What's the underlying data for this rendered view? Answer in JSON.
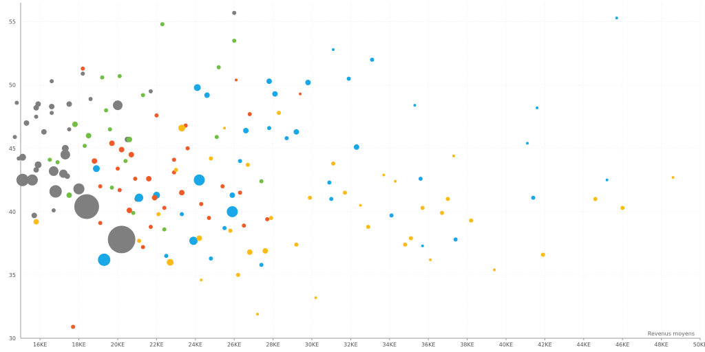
{
  "chart_data": {
    "type": "scatter",
    "title": "",
    "xlabel": "Revenus moyens",
    "ylabel": "",
    "xlim": [
      15000,
      50000
    ],
    "ylim": [
      30,
      56.5
    ],
    "x_ticks": [
      16000,
      18000,
      20000,
      22000,
      24000,
      26000,
      28000,
      30000,
      32000,
      34000,
      36000,
      38000,
      40000,
      42000,
      44000,
      46000,
      48000,
      50000
    ],
    "x_tick_labels": [
      "16KE",
      "18KE",
      "20KE",
      "22KE",
      "24KE",
      "26KE",
      "28KE",
      "30KE",
      "32KE",
      "34KE",
      "36KE",
      "38KE",
      "40KE",
      "42KE",
      "44KE",
      "46KE",
      "48KE",
      "50KE"
    ],
    "y_ticks": [
      30,
      35,
      40,
      45,
      50,
      55
    ],
    "y_tick_labels": [
      "30",
      "35",
      "40",
      "45",
      "50",
      "55"
    ],
    "grid": true,
    "legend": "none",
    "colors": {
      "gray": "#7f7f7f",
      "blue": "#1aa7e8",
      "green": "#70bf44",
      "orange": "#f05a28",
      "yellow": "#fdbb1a"
    },
    "series": [
      {
        "color": "gray",
        "points": [
          {
            "x": 18400,
            "y": 40.4,
            "r": 18
          },
          {
            "x": 20200,
            "y": 37.8,
            "r": 20
          },
          {
            "x": 15100,
            "y": 42.5,
            "r": 9
          },
          {
            "x": 15600,
            "y": 42.5,
            "r": 8
          },
          {
            "x": 16800,
            "y": 41.6,
            "r": 9
          },
          {
            "x": 18000,
            "y": 41.8,
            "r": 8
          },
          {
            "x": 16700,
            "y": 43.2,
            "r": 7
          },
          {
            "x": 17200,
            "y": 43.0,
            "r": 6
          },
          {
            "x": 17300,
            "y": 44.5,
            "r": 7
          },
          {
            "x": 17300,
            "y": 45.0,
            "r": 5
          },
          {
            "x": 20000,
            "y": 48.4,
            "r": 7
          },
          {
            "x": 15100,
            "y": 44.3,
            "r": 5
          },
          {
            "x": 15900,
            "y": 43.7,
            "r": 5
          },
          {
            "x": 15800,
            "y": 43.3,
            "r": 4
          },
          {
            "x": 15800,
            "y": 48.2,
            "r": 4
          },
          {
            "x": 15900,
            "y": 48.5,
            "r": 4
          },
          {
            "x": 16600,
            "y": 48.3,
            "r": 4
          },
          {
            "x": 17500,
            "y": 48.5,
            "r": 4
          },
          {
            "x": 15300,
            "y": 47.0,
            "r": 4
          },
          {
            "x": 15800,
            "y": 47.5,
            "r": 3
          },
          {
            "x": 14800,
            "y": 48.6,
            "r": 3
          },
          {
            "x": 14700,
            "y": 45.9,
            "r": 3
          },
          {
            "x": 16200,
            "y": 46.3,
            "r": 4
          },
          {
            "x": 16600,
            "y": 47.8,
            "r": 3
          },
          {
            "x": 17500,
            "y": 46.5,
            "r": 3
          },
          {
            "x": 16600,
            "y": 50.3,
            "r": 3
          },
          {
            "x": 18200,
            "y": 50.9,
            "r": 3
          },
          {
            "x": 18600,
            "y": 48.9,
            "r": 3
          },
          {
            "x": 21000,
            "y": 41.0,
            "r": 4
          },
          {
            "x": 21700,
            "y": 49.5,
            "r": 3
          },
          {
            "x": 20500,
            "y": 45.7,
            "r": 4
          },
          {
            "x": 26000,
            "y": 55.7,
            "r": 3
          },
          {
            "x": 15700,
            "y": 39.7,
            "r": 4
          },
          {
            "x": 16700,
            "y": 40.1,
            "r": 3
          },
          {
            "x": 14900,
            "y": 44.2,
            "r": 3
          },
          {
            "x": 17400,
            "y": 42.8,
            "r": 4
          }
        ]
      },
      {
        "color": "blue",
        "points": [
          {
            "x": 19300,
            "y": 36.2,
            "r": 9
          },
          {
            "x": 25900,
            "y": 40.0,
            "r": 8
          },
          {
            "x": 24200,
            "y": 42.5,
            "r": 8
          },
          {
            "x": 23900,
            "y": 37.7,
            "r": 6
          },
          {
            "x": 21100,
            "y": 41.1,
            "r": 6
          },
          {
            "x": 24100,
            "y": 49.8,
            "r": 5
          },
          {
            "x": 18900,
            "y": 43.4,
            "r": 5
          },
          {
            "x": 22000,
            "y": 41.3,
            "r": 5
          },
          {
            "x": 29800,
            "y": 50.2,
            "r": 4
          },
          {
            "x": 31900,
            "y": 50.5,
            "r": 3
          },
          {
            "x": 33100,
            "y": 52.0,
            "r": 3
          },
          {
            "x": 45700,
            "y": 55.3,
            "r": 2
          },
          {
            "x": 28100,
            "y": 49.3,
            "r": 4
          },
          {
            "x": 27800,
            "y": 50.3,
            "r": 4
          },
          {
            "x": 29200,
            "y": 46.3,
            "r": 4
          },
          {
            "x": 32300,
            "y": 45.1,
            "r": 4
          },
          {
            "x": 26600,
            "y": 46.4,
            "r": 4
          },
          {
            "x": 27800,
            "y": 46.6,
            "r": 3
          },
          {
            "x": 31000,
            "y": 41.0,
            "r": 3
          },
          {
            "x": 35300,
            "y": 48.4,
            "r": 2
          },
          {
            "x": 37400,
            "y": 37.8,
            "r": 3
          },
          {
            "x": 41400,
            "y": 41.1,
            "r": 3
          },
          {
            "x": 34100,
            "y": 39.7,
            "r": 3
          },
          {
            "x": 35600,
            "y": 42.6,
            "r": 3
          },
          {
            "x": 28700,
            "y": 45.8,
            "r": 3
          },
          {
            "x": 31100,
            "y": 52.8,
            "r": 2
          },
          {
            "x": 24600,
            "y": 49.2,
            "r": 4
          },
          {
            "x": 25900,
            "y": 41.3,
            "r": 4
          },
          {
            "x": 26300,
            "y": 44.0,
            "r": 3
          },
          {
            "x": 25500,
            "y": 38.7,
            "r": 3
          },
          {
            "x": 24800,
            "y": 36.3,
            "r": 3
          },
          {
            "x": 27400,
            "y": 35.8,
            "r": 3
          },
          {
            "x": 30900,
            "y": 42.3,
            "r": 3
          },
          {
            "x": 41600,
            "y": 48.2,
            "r": 2
          },
          {
            "x": 45200,
            "y": 42.5,
            "r": 2
          },
          {
            "x": 41100,
            "y": 45.4,
            "r": 2
          },
          {
            "x": 35700,
            "y": 37.3,
            "r": 2
          },
          {
            "x": 23300,
            "y": 39.8,
            "r": 3
          },
          {
            "x": 22500,
            "y": 36.5,
            "r": 3
          }
        ]
      },
      {
        "color": "green",
        "points": [
          {
            "x": 19200,
            "y": 50.6,
            "r": 3
          },
          {
            "x": 20100,
            "y": 50.7,
            "r": 3
          },
          {
            "x": 22300,
            "y": 54.8,
            "r": 3
          },
          {
            "x": 26000,
            "y": 53.5,
            "r": 3
          },
          {
            "x": 25200,
            "y": 51.4,
            "r": 3
          },
          {
            "x": 17800,
            "y": 46.9,
            "r": 4
          },
          {
            "x": 18500,
            "y": 46.0,
            "r": 4
          },
          {
            "x": 20600,
            "y": 45.7,
            "r": 4
          },
          {
            "x": 19600,
            "y": 46.5,
            "r": 3
          },
          {
            "x": 17500,
            "y": 41.3,
            "r": 4
          },
          {
            "x": 16900,
            "y": 43.9,
            "r": 3
          },
          {
            "x": 18300,
            "y": 45.2,
            "r": 3
          },
          {
            "x": 19400,
            "y": 48.0,
            "r": 3
          },
          {
            "x": 21300,
            "y": 49.2,
            "r": 3
          },
          {
            "x": 27400,
            "y": 42.4,
            "r": 3
          },
          {
            "x": 19700,
            "y": 41.9,
            "r": 3
          },
          {
            "x": 16500,
            "y": 44.1,
            "r": 3
          },
          {
            "x": 20400,
            "y": 44.0,
            "r": 3
          },
          {
            "x": 22400,
            "y": 38.6,
            "r": 3
          },
          {
            "x": 25100,
            "y": 45.9,
            "r": 3
          },
          {
            "x": 20800,
            "y": 39.9,
            "r": 3
          }
        ]
      },
      {
        "color": "orange",
        "points": [
          {
            "x": 19700,
            "y": 45.4,
            "r": 4
          },
          {
            "x": 20200,
            "y": 44.9,
            "r": 4
          },
          {
            "x": 18800,
            "y": 44.0,
            "r": 4
          },
          {
            "x": 20600,
            "y": 40.1,
            "r": 4
          },
          {
            "x": 21600,
            "y": 42.6,
            "r": 4
          },
          {
            "x": 20700,
            "y": 44.5,
            "r": 4
          },
          {
            "x": 22900,
            "y": 44.1,
            "r": 3
          },
          {
            "x": 21900,
            "y": 41.1,
            "r": 4
          },
          {
            "x": 19100,
            "y": 42.0,
            "r": 3
          },
          {
            "x": 23300,
            "y": 41.5,
            "r": 4
          },
          {
            "x": 22400,
            "y": 40.3,
            "r": 3
          },
          {
            "x": 26800,
            "y": 47.7,
            "r": 3
          },
          {
            "x": 23500,
            "y": 46.8,
            "r": 3
          },
          {
            "x": 20900,
            "y": 42.6,
            "r": 3
          },
          {
            "x": 19100,
            "y": 39.1,
            "r": 3
          },
          {
            "x": 21700,
            "y": 38.8,
            "r": 3
          },
          {
            "x": 24700,
            "y": 39.5,
            "r": 3
          },
          {
            "x": 25400,
            "y": 42.0,
            "r": 3
          },
          {
            "x": 26300,
            "y": 41.5,
            "r": 3
          },
          {
            "x": 18200,
            "y": 51.3,
            "r": 3
          },
          {
            "x": 17700,
            "y": 30.9,
            "r": 3
          },
          {
            "x": 26100,
            "y": 50.4,
            "r": 2
          },
          {
            "x": 29400,
            "y": 49.3,
            "r": 2
          },
          {
            "x": 20000,
            "y": 43.4,
            "r": 3
          },
          {
            "x": 22900,
            "y": 43.1,
            "r": 3
          },
          {
            "x": 24300,
            "y": 40.6,
            "r": 3
          },
          {
            "x": 26500,
            "y": 38.9,
            "r": 3
          },
          {
            "x": 27700,
            "y": 39.4,
            "r": 3
          },
          {
            "x": 23600,
            "y": 45.0,
            "r": 3
          },
          {
            "x": 22000,
            "y": 47.6,
            "r": 3
          },
          {
            "x": 21300,
            "y": 37.2,
            "r": 3
          },
          {
            "x": 20100,
            "y": 41.7,
            "r": 3
          }
        ]
      },
      {
        "color": "yellow",
        "points": [
          {
            "x": 23300,
            "y": 46.6,
            "r": 5
          },
          {
            "x": 24200,
            "y": 37.9,
            "r": 4
          },
          {
            "x": 15800,
            "y": 39.2,
            "r": 4
          },
          {
            "x": 22700,
            "y": 36.0,
            "r": 5
          },
          {
            "x": 26800,
            "y": 36.8,
            "r": 4
          },
          {
            "x": 27600,
            "y": 36.9,
            "r": 4
          },
          {
            "x": 29200,
            "y": 37.4,
            "r": 3
          },
          {
            "x": 31700,
            "y": 41.5,
            "r": 3
          },
          {
            "x": 32900,
            "y": 38.8,
            "r": 3
          },
          {
            "x": 34800,
            "y": 37.4,
            "r": 3
          },
          {
            "x": 35100,
            "y": 37.9,
            "r": 3
          },
          {
            "x": 35700,
            "y": 40.3,
            "r": 3
          },
          {
            "x": 36700,
            "y": 39.9,
            "r": 3
          },
          {
            "x": 37000,
            "y": 41.0,
            "r": 3
          },
          {
            "x": 38200,
            "y": 39.3,
            "r": 3
          },
          {
            "x": 41900,
            "y": 36.6,
            "r": 3
          },
          {
            "x": 44600,
            "y": 41.0,
            "r": 3
          },
          {
            "x": 46000,
            "y": 40.3,
            "r": 3
          },
          {
            "x": 48600,
            "y": 42.7,
            "r": 2
          },
          {
            "x": 26200,
            "y": 35.0,
            "r": 3
          },
          {
            "x": 24800,
            "y": 44.2,
            "r": 3
          },
          {
            "x": 23000,
            "y": 43.3,
            "r": 3
          },
          {
            "x": 28300,
            "y": 47.8,
            "r": 3
          },
          {
            "x": 29900,
            "y": 41.1,
            "r": 3
          },
          {
            "x": 31100,
            "y": 43.8,
            "r": 3
          },
          {
            "x": 27900,
            "y": 39.5,
            "r": 3
          },
          {
            "x": 25800,
            "y": 38.5,
            "r": 3
          },
          {
            "x": 22100,
            "y": 39.8,
            "r": 3
          },
          {
            "x": 21100,
            "y": 37.7,
            "r": 3
          },
          {
            "x": 26700,
            "y": 43.7,
            "r": 3
          },
          {
            "x": 30200,
            "y": 33.2,
            "r": 2
          },
          {
            "x": 39400,
            "y": 35.4,
            "r": 2
          },
          {
            "x": 37300,
            "y": 44.4,
            "r": 2
          },
          {
            "x": 34300,
            "y": 42.4,
            "r": 2
          },
          {
            "x": 27200,
            "y": 31.9,
            "r": 2
          },
          {
            "x": 24300,
            "y": 34.6,
            "r": 2
          },
          {
            "x": 36100,
            "y": 36.2,
            "r": 2
          },
          {
            "x": 32500,
            "y": 40.5,
            "r": 2
          },
          {
            "x": 33700,
            "y": 42.9,
            "r": 2
          },
          {
            "x": 25500,
            "y": 46.6,
            "r": 2
          }
        ]
      }
    ]
  }
}
